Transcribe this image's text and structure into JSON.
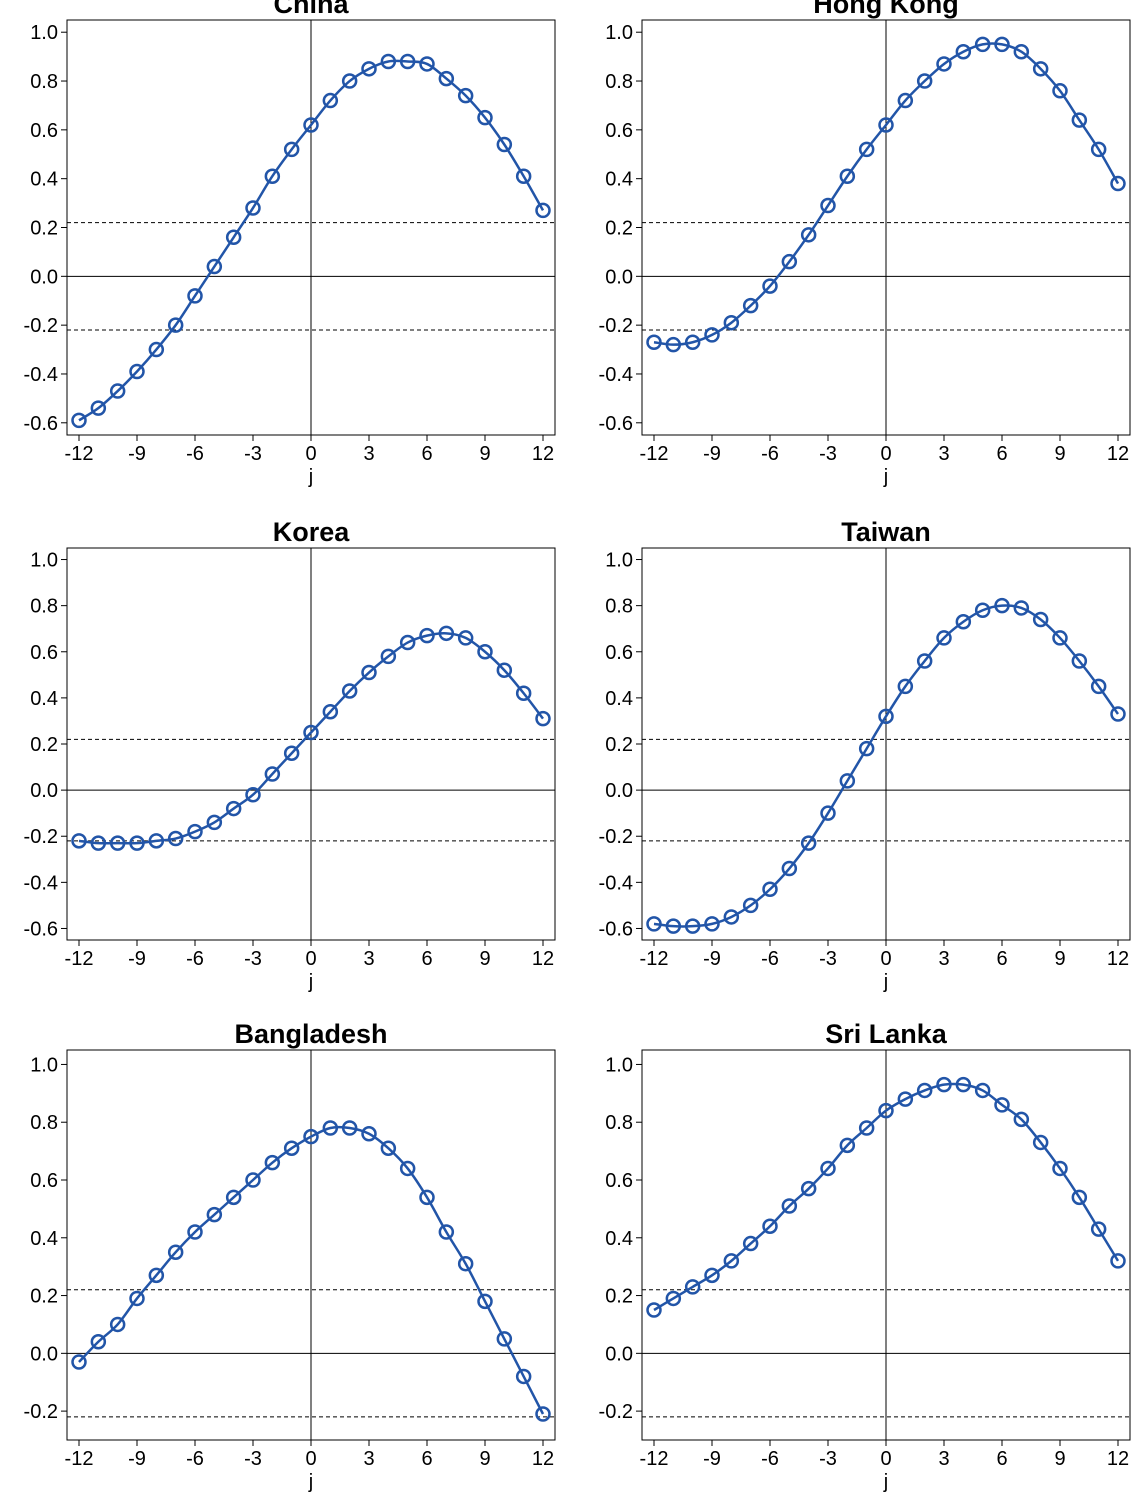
{
  "chart_data": [
    {
      "type": "line",
      "title": "China",
      "xlabel": "j",
      "ylabel": "",
      "xlim": [
        -12,
        12
      ],
      "ylim": [
        -0.65,
        1.05
      ],
      "xticks": [
        -12,
        -9,
        -6,
        -3,
        0,
        3,
        6,
        9,
        12
      ],
      "yticks": [
        1.0,
        0.8,
        0.6,
        0.4,
        0.2,
        0.0,
        -0.2,
        -0.4,
        -0.6
      ],
      "x": [
        -12,
        -11,
        -10,
        -9,
        -8,
        -7,
        -6,
        -5,
        -4,
        -3,
        -2,
        -1,
        0,
        1,
        2,
        3,
        4,
        5,
        6,
        7,
        8,
        9,
        10,
        11,
        12
      ],
      "series": [
        {
          "values": [
            -0.59,
            -0.54,
            -0.47,
            -0.39,
            -0.3,
            -0.2,
            -0.08,
            0.04,
            0.16,
            0.28,
            0.41,
            0.52,
            0.62,
            0.72,
            0.8,
            0.85,
            0.88,
            0.88,
            0.87,
            0.81,
            0.74,
            0.65,
            0.54,
            0.41,
            0.27
          ]
        }
      ],
      "bands": [
        0.22,
        -0.22
      ],
      "color": "#2255a8"
    },
    {
      "type": "line",
      "title": "Hong Kong",
      "xlabel": "j",
      "ylabel": "",
      "xlim": [
        -12,
        12
      ],
      "ylim": [
        -0.65,
        1.05
      ],
      "xticks": [
        -12,
        -9,
        -6,
        -3,
        0,
        3,
        6,
        9,
        12
      ],
      "yticks": [
        1.0,
        0.8,
        0.6,
        0.4,
        0.2,
        0.0,
        -0.2,
        -0.4,
        -0.6
      ],
      "x": [
        -12,
        -11,
        -10,
        -9,
        -8,
        -7,
        -6,
        -5,
        -4,
        -3,
        -2,
        -1,
        0,
        1,
        2,
        3,
        4,
        5,
        6,
        7,
        8,
        9,
        10,
        11,
        12
      ],
      "series": [
        {
          "values": [
            -0.27,
            -0.28,
            -0.27,
            -0.24,
            -0.19,
            -0.12,
            -0.04,
            0.06,
            0.17,
            0.29,
            0.41,
            0.52,
            0.62,
            0.72,
            0.8,
            0.87,
            0.92,
            0.95,
            0.95,
            0.92,
            0.85,
            0.76,
            0.64,
            0.52,
            0.38
          ]
        }
      ],
      "bands": [
        0.22,
        -0.22
      ],
      "color": "#2255a8"
    },
    {
      "type": "line",
      "title": "Korea",
      "xlabel": "j",
      "ylabel": "",
      "xlim": [
        -12,
        12
      ],
      "ylim": [
        -0.65,
        1.05
      ],
      "xticks": [
        -12,
        -9,
        -6,
        -3,
        0,
        3,
        6,
        9,
        12
      ],
      "yticks": [
        1.0,
        0.8,
        0.6,
        0.4,
        0.2,
        0.0,
        -0.2,
        -0.4,
        -0.6
      ],
      "x": [
        -12,
        -11,
        -10,
        -9,
        -8,
        -7,
        -6,
        -5,
        -4,
        -3,
        -2,
        -1,
        0,
        1,
        2,
        3,
        4,
        5,
        6,
        7,
        8,
        9,
        10,
        11,
        12
      ],
      "series": [
        {
          "values": [
            -0.22,
            -0.23,
            -0.23,
            -0.23,
            -0.22,
            -0.21,
            -0.18,
            -0.14,
            -0.08,
            -0.02,
            0.07,
            0.16,
            0.25,
            0.34,
            0.43,
            0.51,
            0.58,
            0.64,
            0.67,
            0.68,
            0.66,
            0.6,
            0.52,
            0.42,
            0.31
          ]
        }
      ],
      "bands": [
        0.22,
        -0.22
      ],
      "color": "#2255a8"
    },
    {
      "type": "line",
      "title": "Taiwan",
      "xlabel": "j",
      "ylabel": "",
      "xlim": [
        -12,
        12
      ],
      "ylim": [
        -0.65,
        1.05
      ],
      "xticks": [
        -12,
        -9,
        -6,
        -3,
        0,
        3,
        6,
        9,
        12
      ],
      "yticks": [
        1.0,
        0.8,
        0.6,
        0.4,
        0.2,
        0.0,
        -0.2,
        -0.4,
        -0.6
      ],
      "x": [
        -12,
        -11,
        -10,
        -9,
        -8,
        -7,
        -6,
        -5,
        -4,
        -3,
        -2,
        -1,
        0,
        1,
        2,
        3,
        4,
        5,
        6,
        7,
        8,
        9,
        10,
        11,
        12
      ],
      "series": [
        {
          "values": [
            -0.58,
            -0.59,
            -0.59,
            -0.58,
            -0.55,
            -0.5,
            -0.43,
            -0.34,
            -0.23,
            -0.1,
            0.04,
            0.18,
            0.32,
            0.45,
            0.56,
            0.66,
            0.73,
            0.78,
            0.8,
            0.79,
            0.74,
            0.66,
            0.56,
            0.45,
            0.33
          ]
        }
      ],
      "bands": [
        0.22,
        -0.22
      ],
      "color": "#2255a8"
    },
    {
      "type": "line",
      "title": "Bangladesh",
      "xlabel": "j",
      "ylabel": "",
      "xlim": [
        -12,
        12
      ],
      "ylim": [
        -0.3,
        1.05
      ],
      "xticks": [
        -12,
        -9,
        -6,
        -3,
        0,
        3,
        6,
        9,
        12
      ],
      "yticks": [
        1.0,
        0.8,
        0.6,
        0.4,
        0.2,
        0.0,
        -0.2
      ],
      "x": [
        -12,
        -11,
        -10,
        -9,
        -8,
        -7,
        -6,
        -5,
        -4,
        -3,
        -2,
        -1,
        0,
        1,
        2,
        3,
        4,
        5,
        6,
        7,
        8,
        9,
        10,
        11,
        12
      ],
      "series": [
        {
          "values": [
            -0.03,
            0.04,
            0.1,
            0.19,
            0.27,
            0.35,
            0.42,
            0.48,
            0.54,
            0.6,
            0.66,
            0.71,
            0.75,
            0.78,
            0.78,
            0.76,
            0.71,
            0.64,
            0.54,
            0.42,
            0.31,
            0.18,
            0.05,
            -0.08,
            -0.21
          ]
        }
      ],
      "bands": [
        0.22,
        -0.22
      ],
      "color": "#2255a8"
    },
    {
      "type": "line",
      "title": "Sri Lanka",
      "xlabel": "j",
      "ylabel": "",
      "xlim": [
        -12,
        12
      ],
      "ylim": [
        -0.3,
        1.05
      ],
      "xticks": [
        -12,
        -9,
        -6,
        -3,
        0,
        3,
        6,
        9,
        12
      ],
      "yticks": [
        1.0,
        0.8,
        0.6,
        0.4,
        0.2,
        0.0,
        -0.2
      ],
      "x": [
        -12,
        -11,
        -10,
        -9,
        -8,
        -7,
        -6,
        -5,
        -4,
        -3,
        -2,
        -1,
        0,
        1,
        2,
        3,
        4,
        5,
        6,
        7,
        8,
        9,
        10,
        11,
        12
      ],
      "series": [
        {
          "values": [
            0.15,
            0.19,
            0.23,
            0.27,
            0.32,
            0.38,
            0.44,
            0.51,
            0.57,
            0.64,
            0.72,
            0.78,
            0.84,
            0.88,
            0.91,
            0.93,
            0.93,
            0.91,
            0.86,
            0.81,
            0.73,
            0.64,
            0.54,
            0.43,
            0.32
          ]
        }
      ],
      "bands": [
        0.22,
        -0.22
      ],
      "color": "#2255a8"
    }
  ]
}
